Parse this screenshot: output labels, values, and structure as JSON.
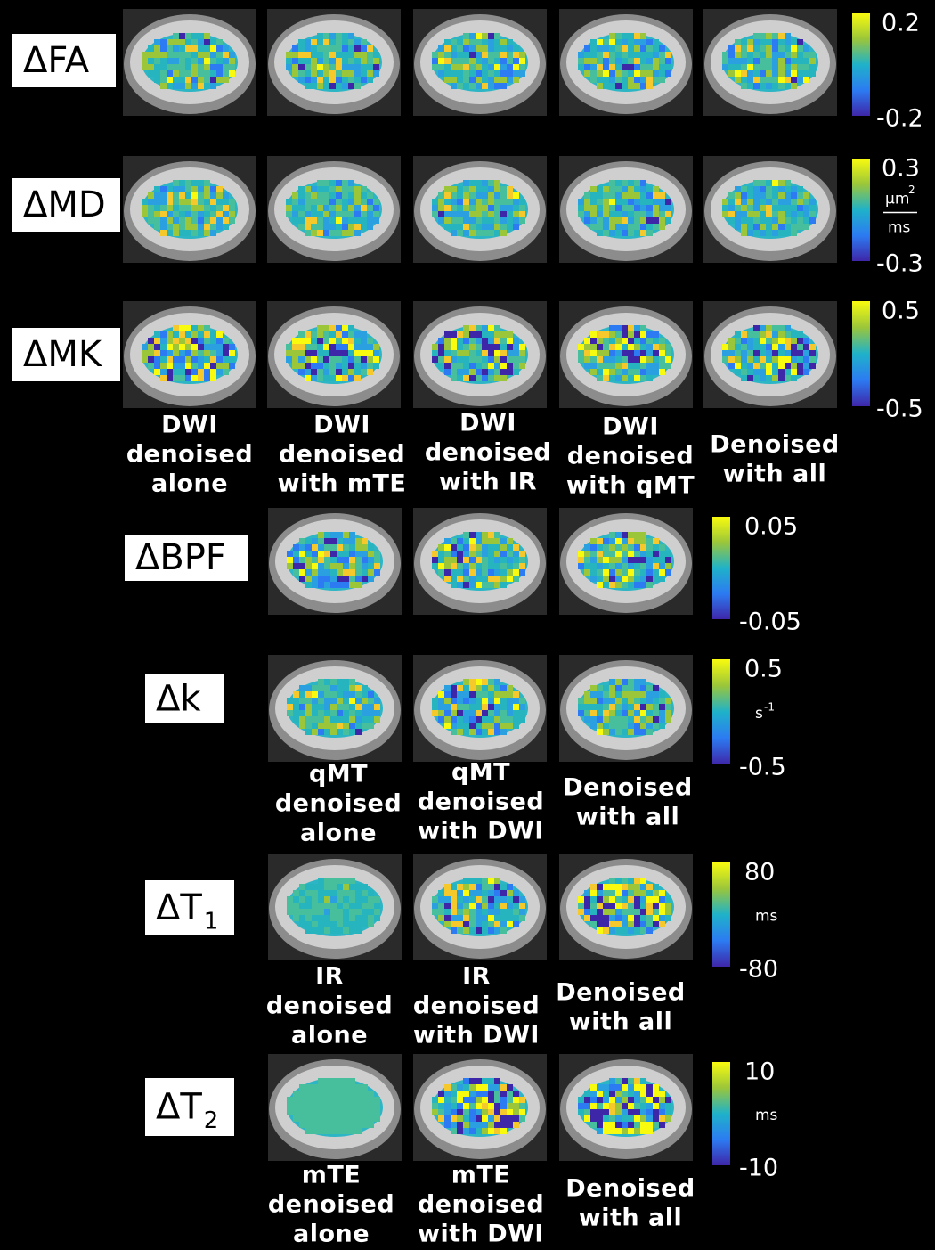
{
  "rows": [
    {
      "label": "ΔFA",
      "bar": {
        "top": "0.2",
        "bottom": "-0.2"
      }
    },
    {
      "label": "ΔMD",
      "bar": {
        "top": "0.3",
        "bottom": "-0.3",
        "unit": {
          "num": "μm",
          "exp": "2",
          "den": "ms"
        }
      }
    },
    {
      "label": "ΔMK",
      "bar": {
        "top": "0.5",
        "bottom": "-0.5"
      }
    },
    {
      "label": "ΔBPF",
      "bar": {
        "top": "0.05",
        "bottom": "-0.05"
      }
    },
    {
      "label": "Δk",
      "bar": {
        "top": "0.5",
        "bottom": "-0.5",
        "unit": {
          "base": "s",
          "exp": "-1"
        }
      }
    },
    {
      "label": "ΔT",
      "sub": "1",
      "bar": {
        "top": "80",
        "bottom": "-80",
        "unit": {
          "base": "ms"
        }
      }
    },
    {
      "label": "ΔT",
      "sub": "2",
      "bar": {
        "top": "10",
        "bottom": "-10",
        "unit": {
          "base": "ms"
        }
      }
    }
  ],
  "captions": [
    [
      [
        "DWI",
        "denoised",
        "alone"
      ],
      [
        "DWI",
        "denoised",
        "with mTE"
      ],
      [
        "DWI",
        "denoised",
        "with IR"
      ],
      [
        "DWI",
        "denoised",
        "with qMT"
      ],
      [
        "Denoised",
        "with all"
      ]
    ],
    [
      [
        "qMT",
        "denoised",
        "alone"
      ],
      [
        "qMT",
        "denoised",
        "with DWI"
      ],
      [
        "Denoised",
        "with all"
      ]
    ],
    [
      [
        "IR",
        "denoised",
        "alone"
      ],
      [
        "IR",
        "denoised",
        "with DWI"
      ],
      [
        "Denoised",
        "with all"
      ]
    ],
    [
      [
        "mTE",
        "denoised",
        "alone"
      ],
      [
        "mTE",
        "denoised",
        "with DWI"
      ],
      [
        "Denoised",
        "with all"
      ]
    ]
  ]
}
